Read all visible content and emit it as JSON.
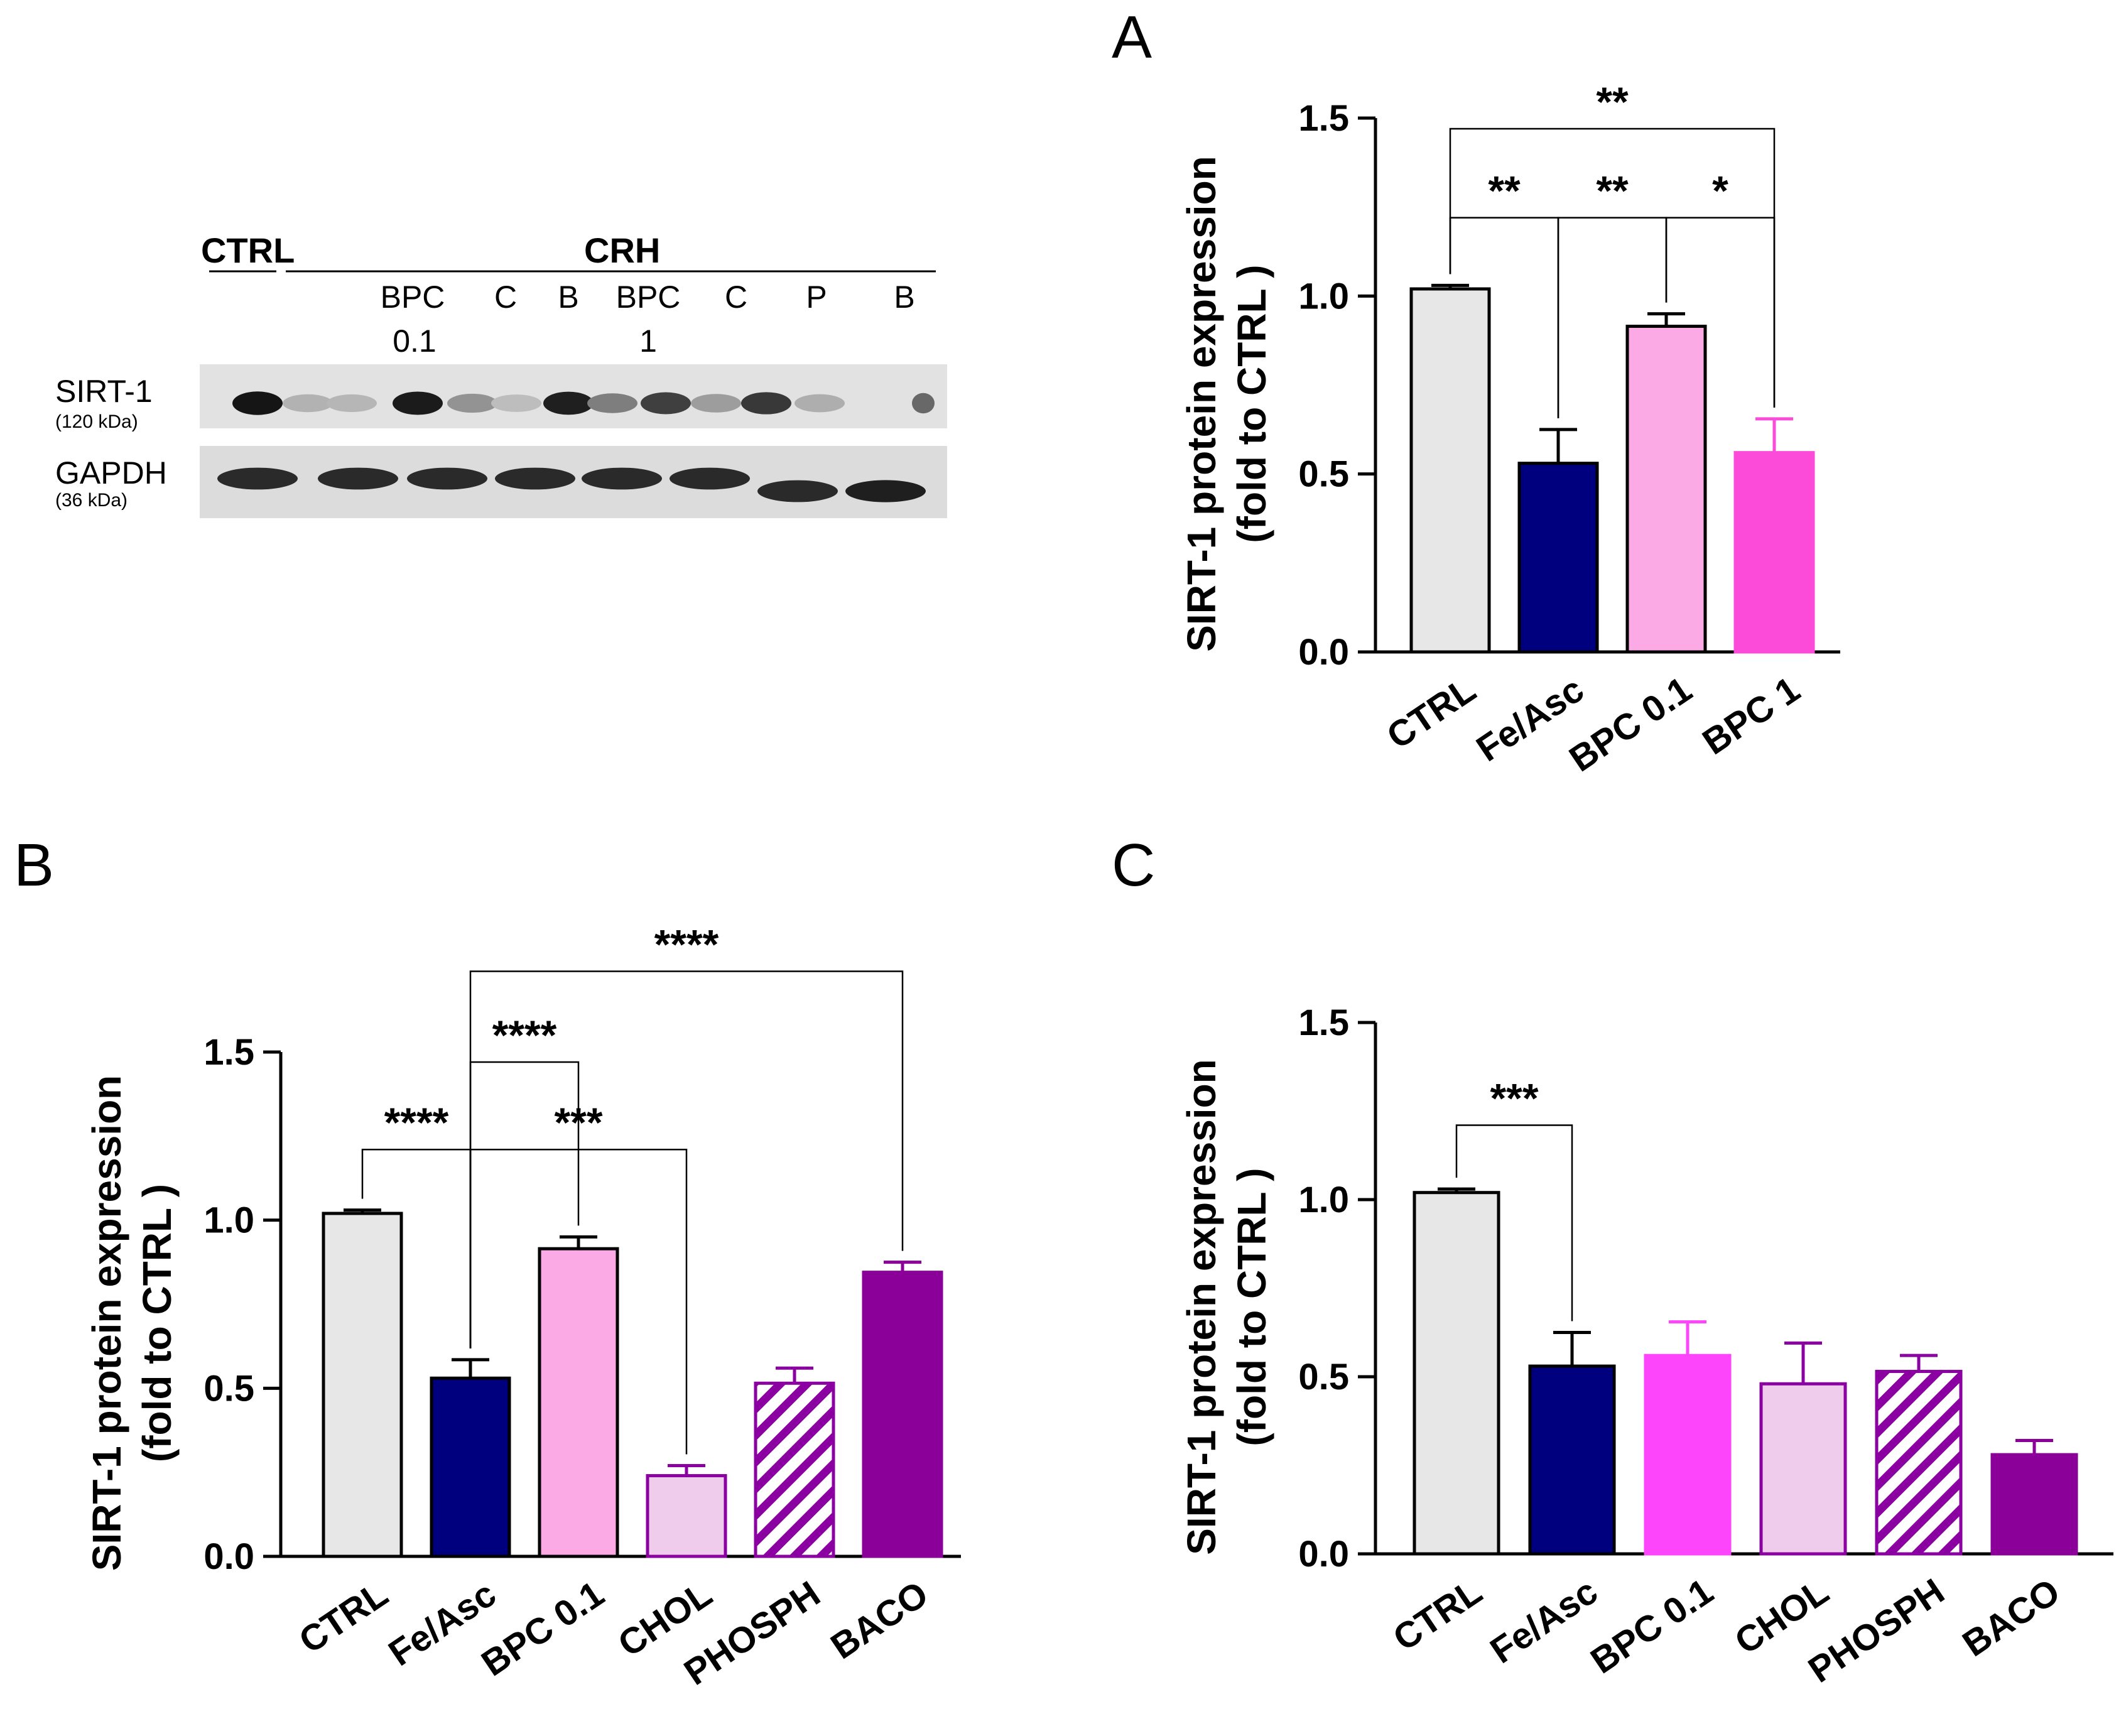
{
  "colors": {
    "ctrl": "#e7e7e7",
    "fe_asc": "#00007f",
    "bpc01": "#fbaae6",
    "bpc1": "#fc4bd8",
    "bpc1_bright": "#fd45fb",
    "chol": "#efcceb",
    "phosph": "#8a00a0",
    "baco": "#8a0099",
    "outline": "#000000"
  },
  "blot": {
    "ctrl_label": "CTRL",
    "crh_label": "CRH",
    "lanes": [
      "BPC",
      "C",
      "B",
      "BPC",
      "C",
      "P",
      "B"
    ],
    "lane_sub": [
      "0.1",
      "1"
    ],
    "rows": [
      {
        "name": "SIRT-1",
        "kda": "(120 kDa)",
        "intensities": [
          0.95,
          0.2,
          0.18,
          0.92,
          0.35,
          0.15,
          0.9,
          0.45,
          0.75,
          0.3,
          0.78,
          0.22,
          0.55
        ]
      },
      {
        "name": "GAPDH",
        "kda": "(36 kDa)",
        "intensities": [
          0.85,
          0.85,
          0.85,
          0.85,
          0.85,
          0.85,
          0.85,
          0.9
        ]
      }
    ]
  },
  "chart_data": [
    {
      "panel": "A",
      "type": "bar",
      "ylabel_line1": "SIRT-1 protein expression",
      "ylabel_line2": "(fold to CTRL )",
      "ylim": [
        0,
        1.5
      ],
      "yticks": [
        "0.0",
        "0.5",
        "1.0",
        "1.5"
      ],
      "categories": [
        "CTRL",
        "Fe/Asc",
        "BPC 0.1",
        "BPC 1"
      ],
      "values": [
        1.02,
        0.53,
        0.915,
        0.56
      ],
      "errors": [
        0.01,
        0.095,
        0.035,
        0.095
      ],
      "fills": [
        "ctrl",
        "fe_asc",
        "bpc01",
        "bpc1"
      ],
      "significance": [
        {
          "from": 0,
          "to": 3,
          "label": "**",
          "level": 1.47
        },
        {
          "from": 0,
          "to": 1,
          "label": "**",
          "level": 1.22
        },
        {
          "from": 1,
          "to": 2,
          "label": "**",
          "level": 1.22
        },
        {
          "from": 2,
          "to": 3,
          "label": "*",
          "level": 1.22
        }
      ]
    },
    {
      "panel": "B",
      "type": "bar",
      "ylabel_line1": "SIRT-1 protein expression",
      "ylabel_line2": "(fold to CTRL )",
      "ylim": [
        0,
        1.5
      ],
      "yticks": [
        "0.0",
        "0.5",
        "1.0",
        "1.5"
      ],
      "categories": [
        "CTRL",
        "Fe/Asc",
        "BPC 0.1",
        "CHOL",
        "PHOSPH",
        "BACO"
      ],
      "values": [
        1.02,
        0.53,
        0.915,
        0.24,
        0.515,
        0.845
      ],
      "errors": [
        0.01,
        0.055,
        0.035,
        0.03,
        0.045,
        0.03
      ],
      "fills": [
        "ctrl",
        "fe_asc",
        "bpc01",
        "chol",
        "phosph",
        "baco"
      ],
      "significance": [
        {
          "from": 1,
          "to": 5,
          "label": "****",
          "level": 1.74
        },
        {
          "from": 1,
          "to": 2,
          "label": "****",
          "level": 1.47
        },
        {
          "from": 0,
          "to": 1,
          "label": "****",
          "level": 1.21
        },
        {
          "from": 1,
          "to": 3,
          "label": "***",
          "level": 1.21
        }
      ]
    },
    {
      "panel": "C",
      "type": "bar",
      "ylabel_line1": "SIRT-1 protein expression",
      "ylabel_line2": "(fold to CTRL )",
      "ylim": [
        0,
        1.5
      ],
      "yticks": [
        "0.0",
        "0.5",
        "1.0",
        "1.5"
      ],
      "categories": [
        "CTRL",
        "Fe/Asc",
        "BPC 0.1",
        "CHOL",
        "PHOSPH",
        "BACO"
      ],
      "values": [
        1.02,
        0.53,
        0.56,
        0.48,
        0.515,
        0.28
      ],
      "errors": [
        0.01,
        0.095,
        0.095,
        0.115,
        0.045,
        0.04
      ],
      "fills": [
        "ctrl",
        "fe_asc",
        "bpc1_bright",
        "chol",
        "phosph",
        "baco"
      ],
      "significance": [
        {
          "from": 0,
          "to": 1,
          "label": "***",
          "level": 1.21
        }
      ]
    }
  ]
}
